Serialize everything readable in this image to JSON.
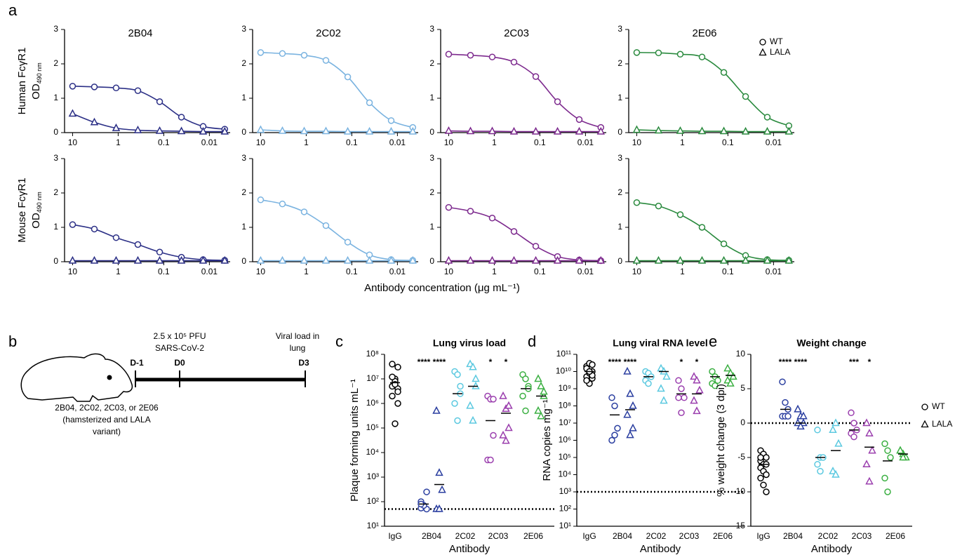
{
  "panel_labels": [
    "a",
    "b",
    "c",
    "d",
    "e"
  ],
  "xlabel_a": "Antibody concentration (μg mL⁻¹)",
  "diagram": {
    "days": [
      "D-1",
      "D0",
      "D3"
    ],
    "dose": [
      "2.5 x 10⁵ PFU",
      "SARS-CoV-2"
    ],
    "readout": [
      "Viral load in",
      "lung"
    ],
    "treatment": [
      "2B04, 2C02, 2C03, or 2E06",
      "(hamsterized and LALA",
      "variant)"
    ]
  },
  "chart_data": [
    {
      "type": "line",
      "title": "2B04",
      "ylabel": [
        "Human FcγR1",
        "OD"
      ],
      "ylabel_sub": "490 nm",
      "color": "#2b2f86",
      "x": [
        10,
        3.33,
        1.11,
        0.37,
        0.123,
        0.041,
        0.0137,
        0.0046
      ],
      "xscale": "log",
      "xlim": [
        15,
        0.0035
      ],
      "xticks": [
        10,
        1,
        0.1,
        0.01
      ],
      "ylim": [
        0,
        3
      ],
      "yticks": [
        0,
        1,
        2,
        3
      ],
      "series": [
        {
          "marker": "circle",
          "values": [
            1.35,
            1.33,
            1.3,
            1.22,
            0.9,
            0.45,
            0.18,
            0.1
          ]
        },
        {
          "marker": "triangle",
          "values": [
            0.55,
            0.3,
            0.13,
            0.07,
            0.05,
            0.04,
            0.03,
            0.03
          ]
        }
      ]
    },
    {
      "type": "line",
      "title": "2C02",
      "color": "#7ab3e0",
      "x": [
        10,
        3.33,
        1.11,
        0.37,
        0.123,
        0.041,
        0.0137,
        0.0046
      ],
      "xscale": "log",
      "xlim": [
        15,
        0.0035
      ],
      "xticks": [
        10,
        1,
        0.1,
        0.01
      ],
      "ylim": [
        0,
        3
      ],
      "yticks": [
        0,
        1,
        2,
        3
      ],
      "series": [
        {
          "marker": "circle",
          "values": [
            2.33,
            2.3,
            2.25,
            2.1,
            1.62,
            0.87,
            0.35,
            0.15
          ]
        },
        {
          "marker": "triangle",
          "values": [
            0.08,
            0.05,
            0.04,
            0.04,
            0.03,
            0.03,
            0.03,
            0.03
          ]
        }
      ]
    },
    {
      "type": "line",
      "title": "2C03",
      "color": "#7d2a8e",
      "x": [
        10,
        3.33,
        1.11,
        0.37,
        0.123,
        0.041,
        0.0137,
        0.0046
      ],
      "xscale": "log",
      "xlim": [
        15,
        0.0035
      ],
      "xticks": [
        10,
        1,
        0.1,
        0.01
      ],
      "ylim": [
        0,
        3
      ],
      "yticks": [
        0,
        1,
        2,
        3
      ],
      "series": [
        {
          "marker": "circle",
          "values": [
            2.28,
            2.25,
            2.2,
            2.05,
            1.63,
            0.9,
            0.38,
            0.15
          ]
        },
        {
          "marker": "triangle",
          "values": [
            0.05,
            0.04,
            0.04,
            0.03,
            0.03,
            0.03,
            0.03,
            0.03
          ]
        }
      ]
    },
    {
      "type": "line",
      "title": "2E06",
      "color": "#2a8a3e",
      "legend": [
        "WT",
        "LALA"
      ],
      "x": [
        10,
        3.33,
        1.11,
        0.37,
        0.123,
        0.041,
        0.0137,
        0.0046
      ],
      "xscale": "log",
      "xlim": [
        15,
        0.0035
      ],
      "xticks": [
        10,
        1,
        0.1,
        0.01
      ],
      "ylim": [
        0,
        3
      ],
      "yticks": [
        0,
        1,
        2,
        3
      ],
      "series": [
        {
          "marker": "circle",
          "values": [
            2.33,
            2.32,
            2.28,
            2.2,
            1.75,
            1.05,
            0.45,
            0.2
          ]
        },
        {
          "marker": "triangle",
          "values": [
            0.08,
            0.06,
            0.05,
            0.04,
            0.04,
            0.03,
            0.03,
            0.03
          ]
        }
      ]
    },
    {
      "type": "line",
      "ylabel": [
        "Mouse FcγR1",
        "OD"
      ],
      "ylabel_sub": "490 nm",
      "color": "#2b2f86",
      "x": [
        10,
        3.33,
        1.11,
        0.37,
        0.123,
        0.041,
        0.0137,
        0.0046
      ],
      "xscale": "log",
      "xlim": [
        15,
        0.0035
      ],
      "xticks": [
        10,
        1,
        0.1,
        0.01
      ],
      "ylim": [
        0,
        3
      ],
      "yticks": [
        0,
        1,
        2,
        3
      ],
      "series": [
        {
          "marker": "circle",
          "values": [
            1.08,
            0.95,
            0.7,
            0.5,
            0.28,
            0.13,
            0.06,
            0.04
          ]
        },
        {
          "marker": "triangle",
          "values": [
            0.03,
            0.03,
            0.03,
            0.03,
            0.03,
            0.03,
            0.03,
            0.03
          ]
        }
      ]
    },
    {
      "type": "line",
      "color": "#7ab3e0",
      "x": [
        10,
        3.33,
        1.11,
        0.37,
        0.123,
        0.041,
        0.0137,
        0.0046
      ],
      "xscale": "log",
      "xlim": [
        15,
        0.0035
      ],
      "xticks": [
        10,
        1,
        0.1,
        0.01
      ],
      "ylim": [
        0,
        3
      ],
      "yticks": [
        0,
        1,
        2,
        3
      ],
      "series": [
        {
          "marker": "circle",
          "values": [
            1.8,
            1.68,
            1.45,
            1.05,
            0.57,
            0.2,
            0.06,
            0.04
          ]
        },
        {
          "marker": "triangle",
          "values": [
            0.03,
            0.03,
            0.03,
            0.03,
            0.03,
            0.03,
            0.03,
            0.03
          ]
        }
      ]
    },
    {
      "type": "line",
      "color": "#7d2a8e",
      "x": [
        10,
        3.33,
        1.11,
        0.37,
        0.123,
        0.041,
        0.0137,
        0.0046
      ],
      "xscale": "log",
      "xlim": [
        15,
        0.0035
      ],
      "xticks": [
        10,
        1,
        0.1,
        0.01
      ],
      "ylim": [
        0,
        3
      ],
      "yticks": [
        0,
        1,
        2,
        3
      ],
      "series": [
        {
          "marker": "circle",
          "values": [
            1.58,
            1.47,
            1.27,
            0.88,
            0.45,
            0.15,
            0.05,
            0.03
          ]
        },
        {
          "marker": "triangle",
          "values": [
            0.03,
            0.03,
            0.03,
            0.03,
            0.03,
            0.03,
            0.03,
            0.03
          ]
        }
      ]
    },
    {
      "type": "line",
      "color": "#2a8a3e",
      "x": [
        10,
        3.33,
        1.11,
        0.37,
        0.123,
        0.041,
        0.0137,
        0.0046
      ],
      "xscale": "log",
      "xlim": [
        15,
        0.0035
      ],
      "xticks": [
        10,
        1,
        0.1,
        0.01
      ],
      "ylim": [
        0,
        3
      ],
      "yticks": [
        0,
        1,
        2,
        3
      ],
      "series": [
        {
          "marker": "circle",
          "values": [
            1.72,
            1.62,
            1.37,
            1.0,
            0.52,
            0.18,
            0.06,
            0.04
          ]
        },
        {
          "marker": "triangle",
          "values": [
            0.03,
            0.03,
            0.03,
            0.03,
            0.03,
            0.03,
            0.03,
            0.03
          ]
        }
      ]
    },
    {
      "type": "dot",
      "title": "Lung virus load",
      "ylabel": "Plaque forming units mL⁻¹",
      "xlabel": "Antibody",
      "categories": [
        "IgG",
        "2B04",
        "2C02",
        "2C03",
        "2E06"
      ],
      "colors": [
        "#000000",
        "#2b3fa0",
        "#5cc9e0",
        "#9b3fae",
        "#3cb043"
      ],
      "yscale": "log",
      "ylim": [
        10,
        100000000
      ],
      "yticks": [
        {
          "value": 10,
          "label": "10¹"
        },
        {
          "value": 100,
          "label": "10²"
        },
        {
          "value": 1000,
          "label": "10³"
        },
        {
          "value": 10000,
          "label": "10⁴"
        },
        {
          "value": 100000,
          "label": "10⁵"
        },
        {
          "value": 1000000,
          "label": "10⁶"
        },
        {
          "value": 10000000,
          "label": "10⁷"
        },
        {
          "value": 100000000,
          "label": "10⁸"
        }
      ],
      "reference_line": 50,
      "series": [
        {
          "marker": "circle",
          "values": [
            [
              5000000,
              10000000,
              30000000,
              40000000,
              8000000,
              4000000,
              2000000,
              6000000,
              3000000,
              12000000,
              150000,
              1000000
            ],
            [
              100,
              60,
              50,
              55,
              70,
              250,
              80
            ],
            [
              20000000,
              15000000,
              2500000,
              1000000,
              200000,
              5000000
            ],
            [
              2000000,
              1500000,
              50000,
              5000,
              5000,
              1500000
            ],
            [
              15000000,
              10000000,
              5000000,
              2000000,
              500000,
              4000000
            ]
          ],
          "means": [
            7000000,
            80,
            2500000,
            200000,
            4000000
          ],
          "significance": [
            null,
            "****",
            null,
            "*",
            null
          ]
        },
        {
          "marker": "triangle",
          "values": [
            null,
            [
              500000,
              1500,
              300,
              50,
              50
            ],
            [
              40000000,
              30000000,
              10000000,
              800000,
              200000,
              5000000
            ],
            [
              2000000,
              600000,
              100000,
              50000,
              30000,
              800000
            ],
            [
              10000000,
              5000000,
              2000000,
              500000,
              300000,
              3000000
            ]
          ],
          "means": [
            null,
            500,
            5000000,
            400000,
            2000000
          ],
          "significance": [
            null,
            "****",
            null,
            "*",
            null
          ]
        }
      ]
    },
    {
      "type": "dot",
      "title": "Lung viral RNA level",
      "ylabel": "RNA copies mg⁻¹",
      "xlabel": "Antibody",
      "categories": [
        "IgG",
        "2B04",
        "2C02",
        "2C03",
        "2E06"
      ],
      "colors": [
        "#000000",
        "#2b3fa0",
        "#5cc9e0",
        "#9b3fae",
        "#3cb043"
      ],
      "yscale": "log",
      "ylim": [
        10,
        100000000000
      ],
      "yticks": [
        {
          "value": 10,
          "label": "10¹"
        },
        {
          "value": 100,
          "label": "10²"
        },
        {
          "value": 1000,
          "label": "10³"
        },
        {
          "value": 10000,
          "label": "10⁴"
        },
        {
          "value": 100000,
          "label": "10⁵"
        },
        {
          "value": 1000000,
          "label": "10⁶"
        },
        {
          "value": 10000000,
          "label": "10⁷"
        },
        {
          "value": 100000000,
          "label": "10⁸"
        },
        {
          "value": 1000000000,
          "label": "10⁹"
        },
        {
          "value": 10000000000,
          "label": "10¹⁰"
        },
        {
          "value": 100000000000,
          "label": "10¹¹"
        }
      ],
      "reference_line": 1000,
      "series": [
        {
          "marker": "circle",
          "values": [
            [
              20000000000,
              30000000000,
              10000000000,
              5000000000,
              8000000000,
              4000000000,
              15000000000,
              2000000000,
              6000000000,
              3000000000,
              10000000000,
              25000000000
            ],
            [
              300000000,
              100000000,
              5000000,
              1000000,
              2000000
            ],
            [
              10000000000,
              8000000000,
              5000000000,
              3000000000,
              2000000000
            ],
            [
              3000000000,
              1000000000,
              300000000,
              300000000,
              40000000
            ],
            [
              10000000000,
              5000000000,
              3000000000,
              2000000000,
              1500000000
            ]
          ],
          "means": [
            10000000000,
            30000000,
            5000000000,
            500000000,
            5000000000
          ],
          "significance": [
            null,
            "****",
            null,
            "*",
            null
          ]
        },
        {
          "marker": "triangle",
          "values": [
            null,
            [
              10000000000,
              500000000,
              100000000,
              30000000,
              2000000,
              5000000
            ],
            [
              15000000000,
              10000000000,
              5000000000,
              1000000000,
              200000000
            ],
            [
              5000000000,
              3000000000,
              800000000,
              200000000,
              50000000
            ],
            [
              15000000000,
              8000000000,
              5000000000,
              3000000000,
              2000000000
            ]
          ],
          "means": [
            null,
            60000000,
            10000000000,
            500000000,
            6000000000
          ],
          "significance": [
            null,
            "****",
            null,
            "*",
            null
          ]
        }
      ]
    },
    {
      "type": "dot",
      "title": "Weight change",
      "ylabel": "% weight change (3 dpi)",
      "xlabel": "Antibody",
      "legend": [
        "WT",
        "LALA"
      ],
      "categories": [
        "IgG",
        "2B04",
        "2C02",
        "2C03",
        "2E06"
      ],
      "colors": [
        "#000000",
        "#2b3fa0",
        "#5cc9e0",
        "#9b3fae",
        "#3cb043"
      ],
      "ylim": [
        -15,
        10
      ],
      "yticks": [
        -15,
        -10,
        -5,
        0,
        5,
        10
      ],
      "reference_line": 0,
      "series": [
        {
          "marker": "circle",
          "values": [
            [
              -4,
              -4.5,
              -5,
              -5.5,
              -6,
              -6,
              -6.5,
              -7,
              -7.5,
              -8,
              -9,
              -10,
              -5
            ],
            [
              6,
              3,
              2,
              1,
              1,
              1
            ],
            [
              -1,
              -5,
              -5,
              -6,
              -7
            ],
            [
              1.5,
              0,
              -1,
              -1.5,
              -2
            ],
            [
              -3,
              -4,
              -5,
              -8,
              -10
            ]
          ],
          "means": [
            -6,
            2,
            -5,
            -1,
            -5.5
          ],
          "significance": [
            null,
            "****",
            null,
            "***",
            null
          ]
        },
        {
          "marker": "triangle",
          "values": [
            null,
            [
              2,
              1,
              0,
              0,
              -0.5,
              1
            ],
            [
              -1,
              0,
              -3,
              -7,
              -7.5
            ],
            [
              0,
              -1.5,
              -4,
              -6,
              -8.5
            ],
            [
              -4,
              -4.5,
              -5,
              -4,
              -5
            ]
          ],
          "means": [
            null,
            0,
            -4,
            -3.5,
            -4.5
          ],
          "significance": [
            null,
            "****",
            null,
            "*",
            null
          ]
        }
      ]
    }
  ]
}
